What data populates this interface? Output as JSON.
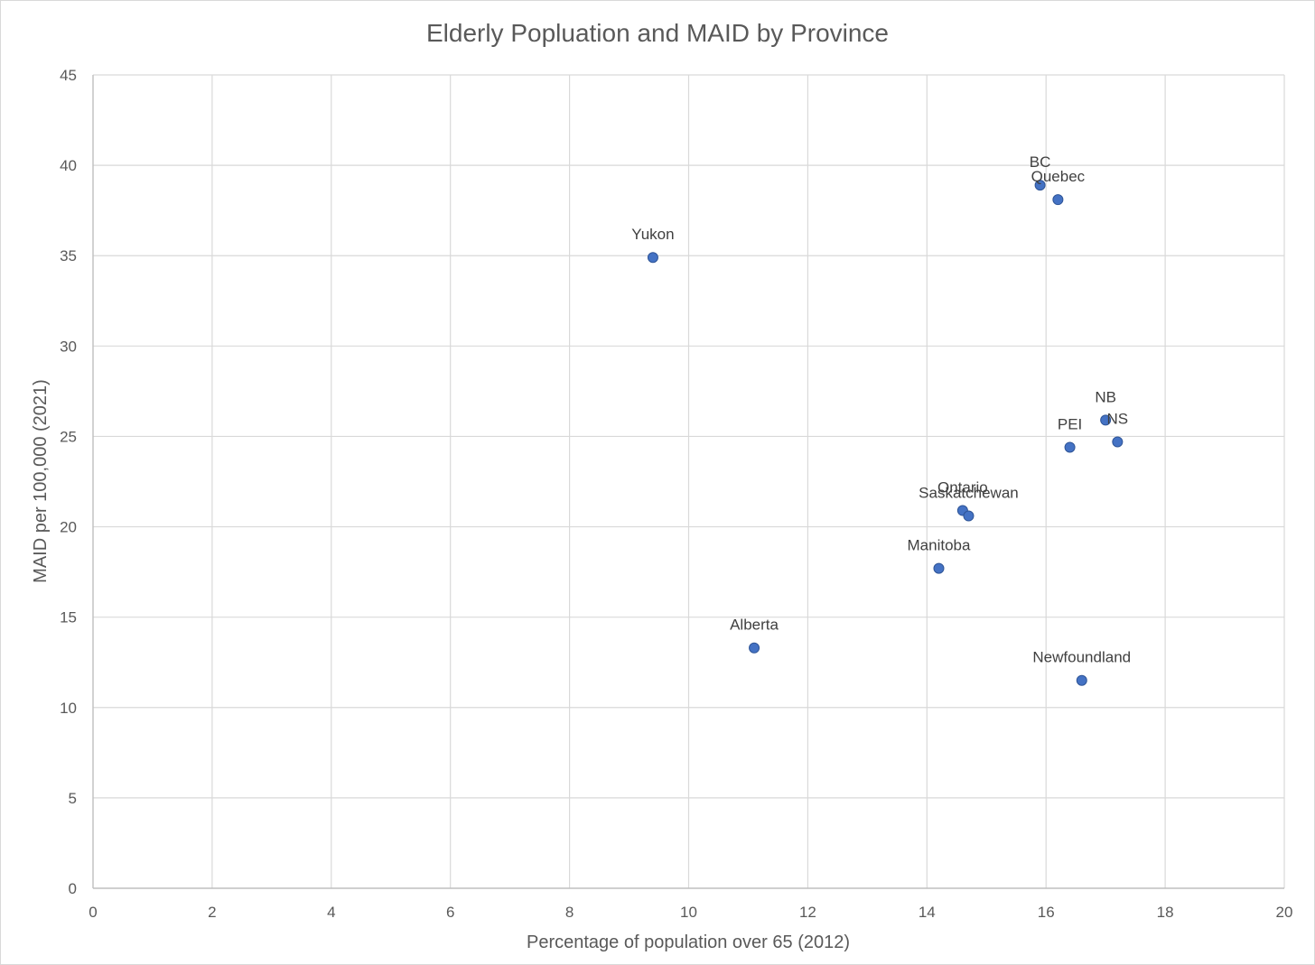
{
  "chart_data": {
    "type": "scatter",
    "title": "Elderly Popluation and MAID by Province",
    "xlabel": "Percentage of population over 65 (2012)",
    "ylabel": "MAID per 100,000 (2021)",
    "xlim": [
      0,
      20
    ],
    "ylim": [
      0,
      45
    ],
    "x_ticks": [
      "0",
      "2",
      "4",
      "6",
      "8",
      "10",
      "12",
      "14",
      "16",
      "18",
      "20"
    ],
    "y_ticks": [
      "0",
      "5",
      "10",
      "15",
      "20",
      "25",
      "30",
      "35",
      "40",
      "45"
    ],
    "grid": true,
    "marker_color": "#4472c4",
    "points": [
      {
        "label": "BC",
        "x": 15.9,
        "y": 38.9
      },
      {
        "label": "Quebec",
        "x": 16.2,
        "y": 38.1
      },
      {
        "label": "Yukon",
        "x": 9.4,
        "y": 34.9
      },
      {
        "label": "NB",
        "x": 17.0,
        "y": 25.9
      },
      {
        "label": "NS",
        "x": 17.2,
        "y": 24.7
      },
      {
        "label": "PEI",
        "x": 16.4,
        "y": 24.4
      },
      {
        "label": "Ontario",
        "x": 14.6,
        "y": 20.9
      },
      {
        "label": "Saskatchewan",
        "x": 14.7,
        "y": 20.6
      },
      {
        "label": "Manitoba",
        "x": 14.2,
        "y": 17.7
      },
      {
        "label": "Alberta",
        "x": 11.1,
        "y": 13.3
      },
      {
        "label": "Newfoundland",
        "x": 16.6,
        "y": 11.5
      }
    ]
  }
}
